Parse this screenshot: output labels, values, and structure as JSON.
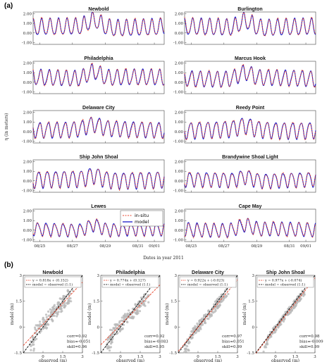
{
  "section_a_label": "(a)",
  "section_b_label": "(b)",
  "colors": {
    "insitu": "#e8452c",
    "model": "#1a1ac8",
    "scatter": "#b9b9b9",
    "fit": "#e8452c",
    "oneone": "#000000"
  },
  "chart_data": [
    {
      "type": "line",
      "panel": "a",
      "ylabel": "η (in meters)",
      "xlabel": "Dates in year 2011",
      "x_ticks": [
        "08/25",
        "08/27",
        "08/29",
        "08/31",
        "09/01"
      ],
      "y_ticks": [
        "2.00",
        "1.00",
        "0.00",
        "-1.00"
      ],
      "ylim": [
        -1.2,
        2.2
      ],
      "legend": {
        "entries": [
          "in-situ",
          "model"
        ],
        "placement": "inside Lewes panel, top-right"
      },
      "stations": [
        {
          "name": "Newbold",
          "mean": 0.55,
          "amp": 0.85,
          "surge": 0.8
        },
        {
          "name": "Burlington",
          "mean": 0.55,
          "amp": 0.85,
          "surge": 0.75
        },
        {
          "name": "Philadelphia",
          "mean": 0.45,
          "amp": 0.8,
          "surge": 0.7
        },
        {
          "name": "Marcus Hook",
          "mean": 0.4,
          "amp": 0.8,
          "surge": 0.6
        },
        {
          "name": "Delaware City",
          "mean": 0.25,
          "amp": 0.8,
          "surge": 0.45
        },
        {
          "name": "Reedy Point",
          "mean": 0.2,
          "amp": 0.85,
          "surge": 0.4
        },
        {
          "name": "Ship John Shoal",
          "mean": 0.15,
          "amp": 0.85,
          "surge": 0.45
        },
        {
          "name": "Brandywine Shoal Light",
          "mean": 0.1,
          "amp": 0.75,
          "surge": 0.4
        },
        {
          "name": "Lewes",
          "mean": 0.05,
          "amp": 0.65,
          "surge": 0.55
        },
        {
          "name": "Cape May",
          "mean": 0.05,
          "amp": 0.7,
          "surge": 0.5
        }
      ]
    },
    {
      "type": "scatter",
      "panel": "b",
      "xlabel": "observed (m)",
      "ylabel": "model (m)",
      "x_ticks": [
        "0",
        "1.5",
        "3"
      ],
      "y_ticks": [
        "3",
        "1.5",
        "0",
        "-1.5"
      ],
      "xlim": [
        -1.5,
        3
      ],
      "ylim": [
        -1.5,
        3
      ],
      "panels": [
        {
          "name": "Newbold",
          "fit_label": "y = 0.818x + (0.152)",
          "slope": 0.818,
          "intercept": 0.152,
          "oneone_label": "model = observed (1:1)",
          "corr": "corr=0.92",
          "bias": "bias=-0.051",
          "skill": "skill=0.96"
        },
        {
          "name": "Philadelphia",
          "fit_label": "y = 0.774x + (0.127)",
          "slope": 0.774,
          "intercept": 0.127,
          "oneone_label": "model = observed (1:1)",
          "corr": "corr=0.92",
          "bias": "bias=-0.083",
          "skill": "skill=0.95"
        },
        {
          "name": "Delaware City",
          "fit_label": "y = 0.922x + (-0.023)",
          "slope": 0.922,
          "intercept": -0.023,
          "oneone_label": "model = observed (1:1)",
          "corr": "corr=0.97",
          "bias": "bias=0.051",
          "skill": "skill=0.99"
        },
        {
          "name": "Ship John Shoal",
          "fit_label": "y = 0.977x + (-0.074)",
          "slope": 0.977,
          "intercept": -0.074,
          "oneone_label": "model = observed (1:1)",
          "corr": "corr=0.98",
          "bias": "bias=-0.009",
          "skill": "skill=0.99"
        }
      ]
    }
  ]
}
